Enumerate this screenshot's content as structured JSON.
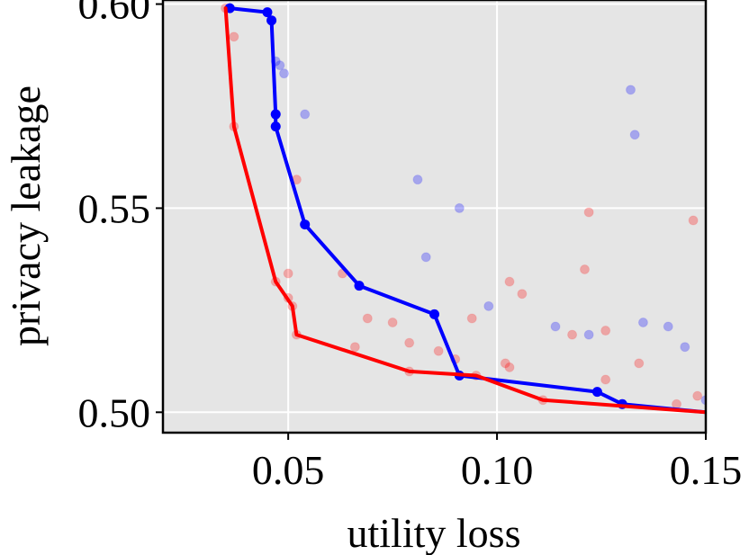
{
  "chart_data": {
    "type": "scatter",
    "xlabel": "utility loss",
    "ylabel": "privacy leakage",
    "xlim": [
      0.02,
      0.15
    ],
    "ylim": [
      0.495,
      0.601
    ],
    "xticks": [
      {
        "value": 0.05,
        "label": "0.05"
      },
      {
        "value": 0.1,
        "label": "0.10"
      },
      {
        "value": 0.15,
        "label": "0.15"
      }
    ],
    "yticks": [
      {
        "value": 0.5,
        "label": "0.50"
      },
      {
        "value": 0.55,
        "label": "0.55"
      },
      {
        "value": 0.6,
        "label": "0.60"
      }
    ],
    "grid": true,
    "background": "#e5e5e5",
    "series": [
      {
        "color": "#0000ff",
        "scatter": [
          [
            0.036,
            0.599
          ],
          [
            0.045,
            0.598
          ],
          [
            0.046,
            0.596
          ],
          [
            0.047,
            0.586
          ],
          [
            0.048,
            0.585
          ],
          [
            0.049,
            0.583
          ],
          [
            0.047,
            0.573
          ],
          [
            0.047,
            0.57
          ],
          [
            0.054,
            0.573
          ],
          [
            0.054,
            0.546
          ],
          [
            0.081,
            0.557
          ],
          [
            0.091,
            0.55
          ],
          [
            0.083,
            0.538
          ],
          [
            0.098,
            0.526
          ],
          [
            0.067,
            0.531
          ],
          [
            0.085,
            0.524
          ],
          [
            0.091,
            0.509
          ],
          [
            0.114,
            0.521
          ],
          [
            0.122,
            0.519
          ],
          [
            0.132,
            0.579
          ],
          [
            0.133,
            0.568
          ],
          [
            0.135,
            0.522
          ],
          [
            0.141,
            0.521
          ],
          [
            0.145,
            0.516
          ],
          [
            0.124,
            0.505
          ],
          [
            0.13,
            0.502
          ],
          [
            0.15,
            0.503
          ]
        ],
        "frontier": [
          [
            0.036,
            0.599
          ],
          [
            0.045,
            0.598
          ],
          [
            0.046,
            0.596
          ],
          [
            0.047,
            0.573
          ],
          [
            0.047,
            0.57
          ],
          [
            0.054,
            0.546
          ],
          [
            0.067,
            0.531
          ],
          [
            0.085,
            0.524
          ],
          [
            0.091,
            0.509
          ],
          [
            0.124,
            0.505
          ],
          [
            0.13,
            0.502
          ],
          [
            0.15,
            0.5
          ]
        ]
      },
      {
        "color": "#ff0000",
        "scatter": [
          [
            0.035,
            0.599
          ],
          [
            0.037,
            0.592
          ],
          [
            0.037,
            0.57
          ],
          [
            0.052,
            0.557
          ],
          [
            0.047,
            0.532
          ],
          [
            0.05,
            0.534
          ],
          [
            0.05,
            0.528
          ],
          [
            0.051,
            0.526
          ],
          [
            0.052,
            0.519
          ],
          [
            0.063,
            0.534
          ],
          [
            0.066,
            0.516
          ],
          [
            0.069,
            0.523
          ],
          [
            0.075,
            0.522
          ],
          [
            0.079,
            0.517
          ],
          [
            0.079,
            0.51
          ],
          [
            0.086,
            0.515
          ],
          [
            0.09,
            0.513
          ],
          [
            0.094,
            0.523
          ],
          [
            0.095,
            0.509
          ],
          [
            0.102,
            0.512
          ],
          [
            0.103,
            0.511
          ],
          [
            0.103,
            0.532
          ],
          [
            0.106,
            0.529
          ],
          [
            0.111,
            0.503
          ],
          [
            0.118,
            0.519
          ],
          [
            0.121,
            0.535
          ],
          [
            0.122,
            0.549
          ],
          [
            0.126,
            0.52
          ],
          [
            0.126,
            0.508
          ],
          [
            0.134,
            0.512
          ],
          [
            0.143,
            0.502
          ],
          [
            0.147,
            0.547
          ],
          [
            0.148,
            0.504
          ]
        ],
        "frontier": [
          [
            0.035,
            0.599
          ],
          [
            0.037,
            0.57
          ],
          [
            0.047,
            0.532
          ],
          [
            0.051,
            0.526
          ],
          [
            0.052,
            0.519
          ],
          [
            0.079,
            0.51
          ],
          [
            0.095,
            0.509
          ],
          [
            0.111,
            0.503
          ],
          [
            0.15,
            0.5
          ]
        ]
      }
    ]
  }
}
